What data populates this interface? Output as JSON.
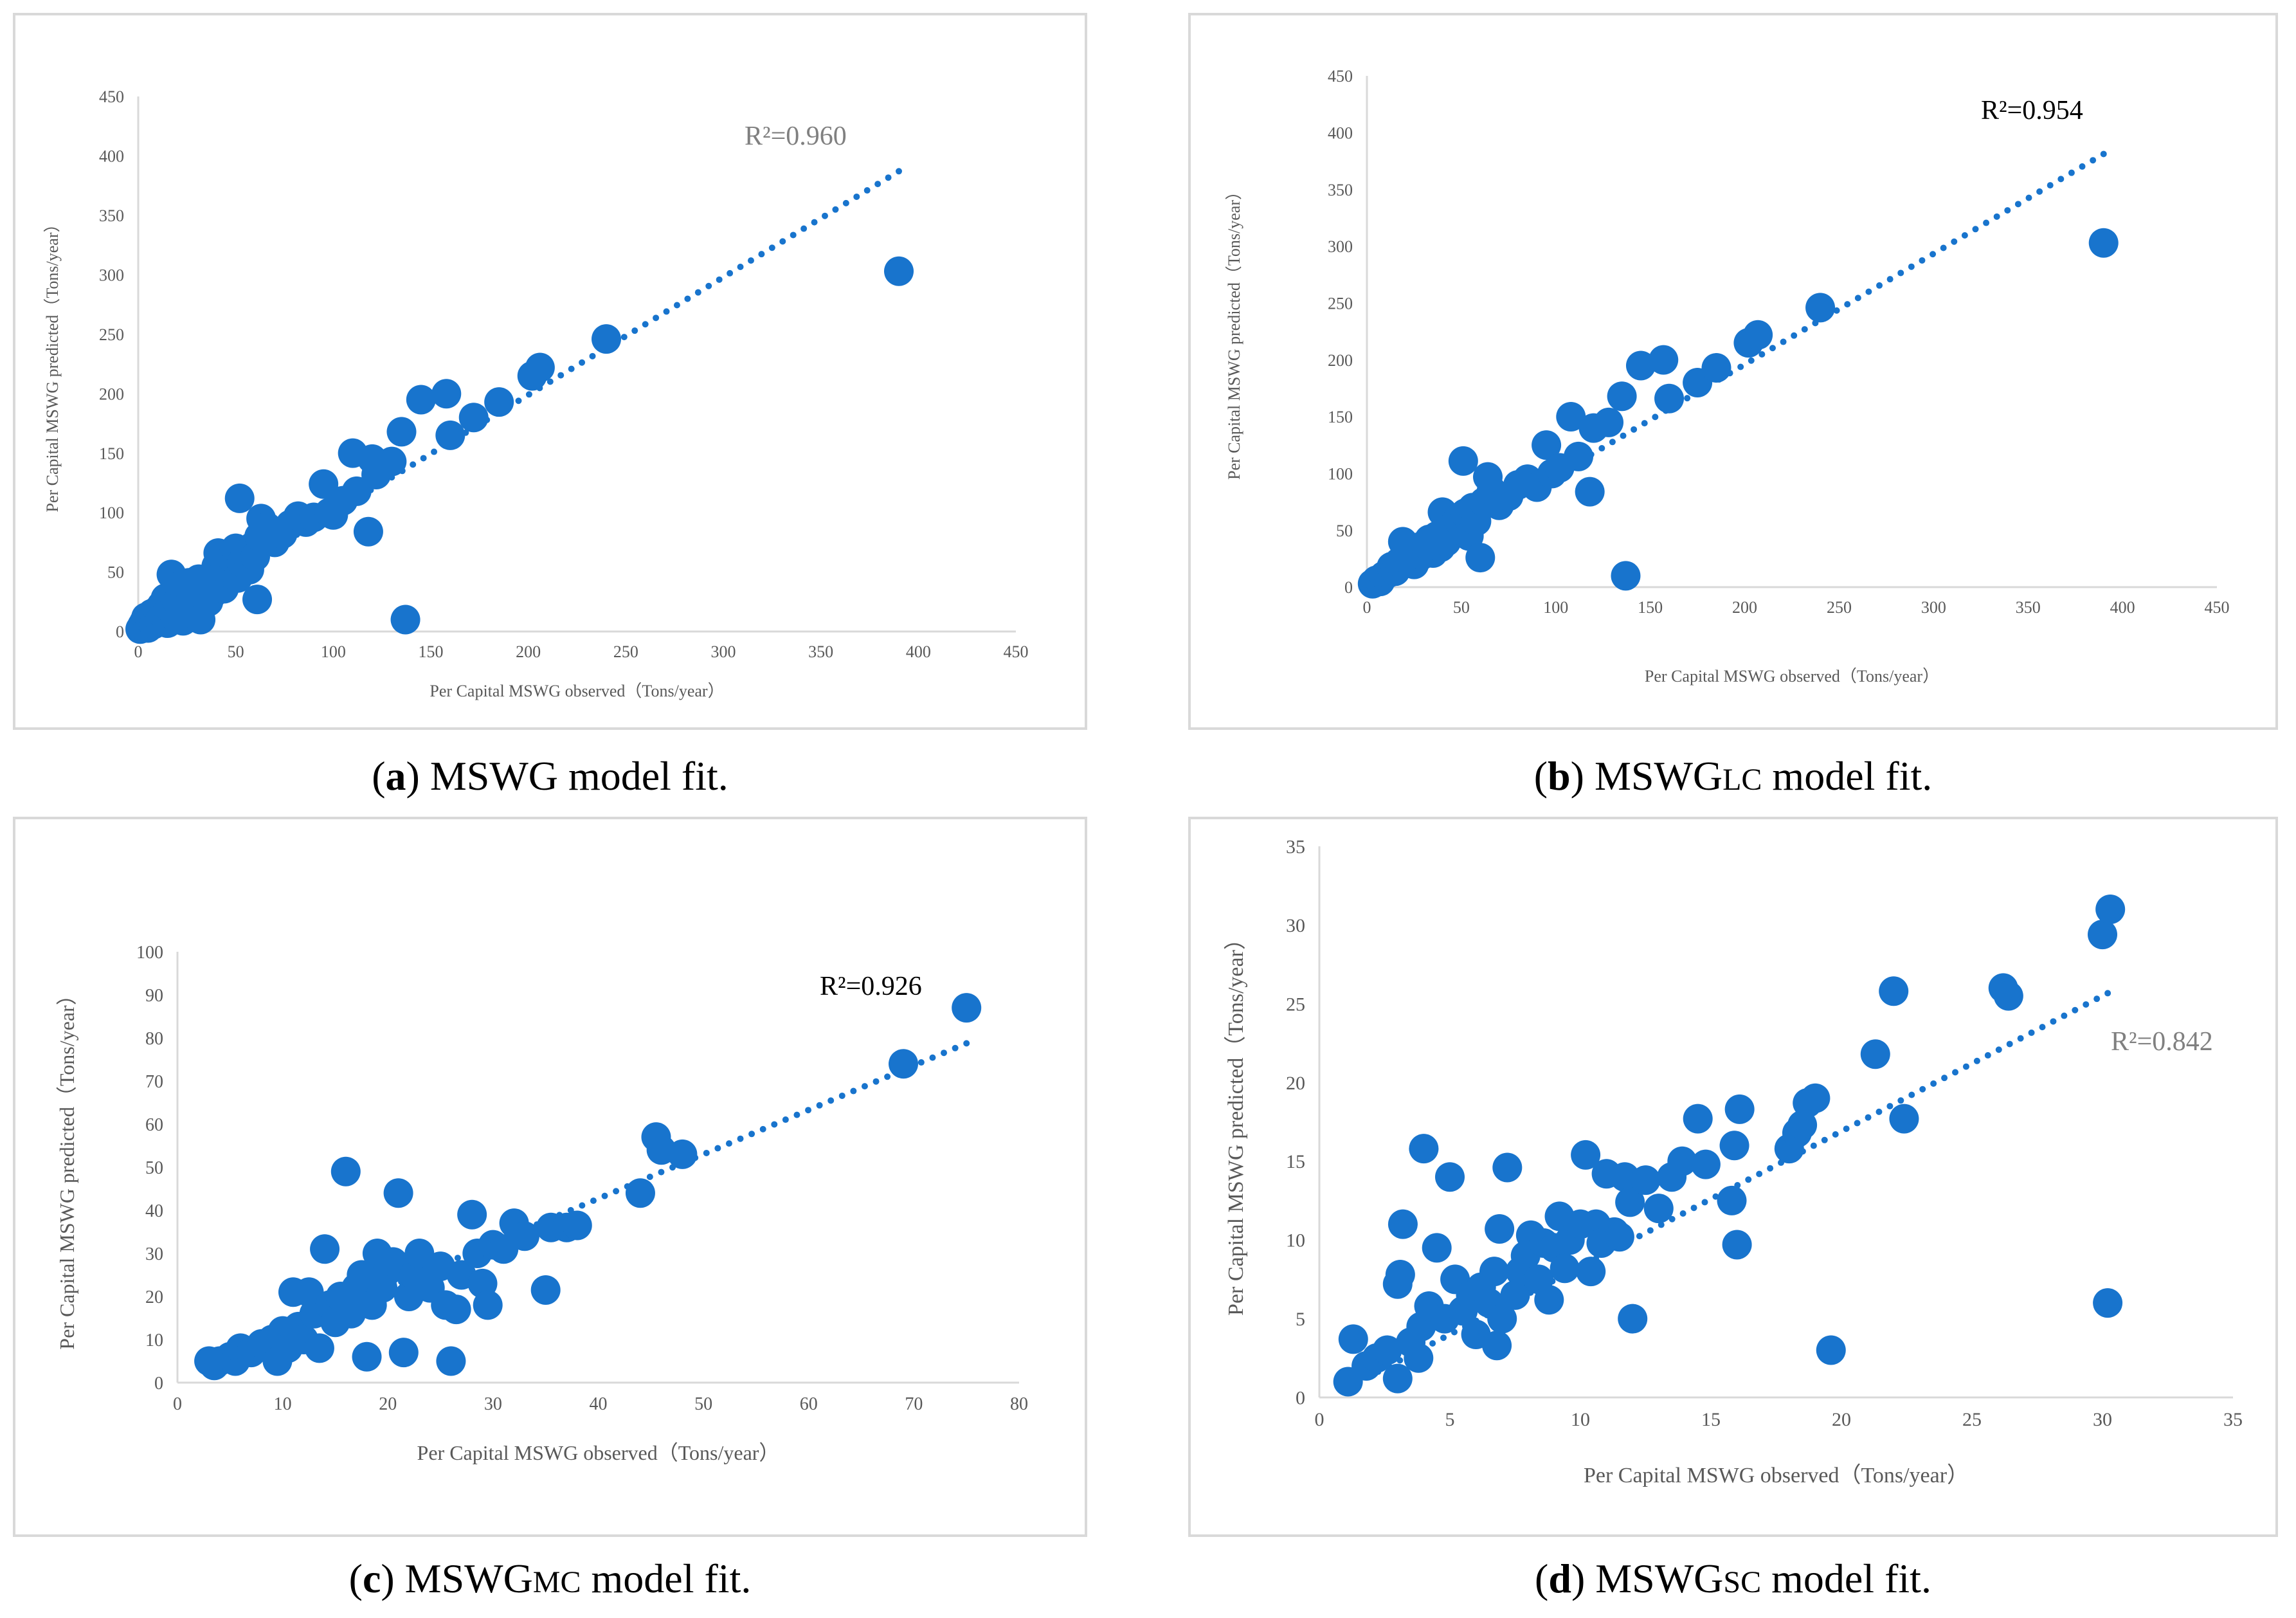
{
  "chart_data": [
    {
      "id": "a",
      "type": "scatter",
      "title": "",
      "xlabel": "Per Capital MSWG observed（Tons/year）",
      "ylabel": "Per Capital MSWG predicted（Tons/year）",
      "xlim": [
        0,
        450
      ],
      "ylim": [
        0,
        450
      ],
      "xticks": [
        0,
        50,
        100,
        150,
        200,
        250,
        300,
        350,
        400,
        450
      ],
      "yticks": [
        0,
        50,
        100,
        150,
        200,
        250,
        300,
        350,
        400,
        450
      ],
      "r2_label": "R²=0.960",
      "r2_color": "#808080",
      "trendline": {
        "x_from": 0,
        "x_to": 390,
        "slope": 0.99,
        "intercept": 1
      },
      "points": [
        [
          1,
          2
        ],
        [
          2,
          5
        ],
        [
          3,
          8
        ],
        [
          4,
          12
        ],
        [
          5,
          3
        ],
        [
          6,
          10
        ],
        [
          7,
          15
        ],
        [
          8,
          6
        ],
        [
          10,
          18
        ],
        [
          11,
          9
        ],
        [
          12,
          22
        ],
        [
          13,
          14
        ],
        [
          14,
          28
        ],
        [
          15,
          7
        ],
        [
          16,
          20
        ],
        [
          17,
          48
        ],
        [
          18,
          31
        ],
        [
          19,
          12
        ],
        [
          20,
          25
        ],
        [
          21,
          38
        ],
        [
          22,
          17
        ],
        [
          23,
          9
        ],
        [
          24,
          33
        ],
        [
          25,
          20
        ],
        [
          26,
          41
        ],
        [
          27,
          28
        ],
        [
          28,
          15
        ],
        [
          29,
          36
        ],
        [
          30,
          22
        ],
        [
          31,
          44
        ],
        [
          32,
          10
        ],
        [
          34,
          30
        ],
        [
          35,
          38
        ],
        [
          36,
          25
        ],
        [
          38,
          45
        ],
        [
          39,
          33
        ],
        [
          40,
          55
        ],
        [
          41,
          66
        ],
        [
          42,
          42
        ],
        [
          44,
          36
        ],
        [
          45,
          58
        ],
        [
          46,
          50
        ],
        [
          48,
          62
        ],
        [
          50,
          70
        ],
        [
          51,
          45
        ],
        [
          52,
          112
        ],
        [
          53,
          58
        ],
        [
          55,
          65
        ],
        [
          57,
          52
        ],
        [
          59,
          72
        ],
        [
          60,
          63
        ],
        [
          61,
          27
        ],
        [
          62,
          80
        ],
        [
          63,
          95
        ],
        [
          66,
          88
        ],
        [
          70,
          75
        ],
        [
          74,
          82
        ],
        [
          78,
          90
        ],
        [
          82,
          97
        ],
        [
          86,
          92
        ],
        [
          90,
          96
        ],
        [
          95,
          124
        ],
        [
          98,
          100
        ],
        [
          100,
          98
        ],
        [
          105,
          110
        ],
        [
          110,
          150
        ],
        [
          112,
          118
        ],
        [
          118,
          84
        ],
        [
          120,
          145
        ],
        [
          122,
          132
        ],
        [
          130,
          143
        ],
        [
          135,
          168
        ],
        [
          137,
          10
        ],
        [
          145,
          195
        ],
        [
          158,
          200
        ],
        [
          160,
          165
        ],
        [
          172,
          180
        ],
        [
          185,
          193
        ],
        [
          202,
          215
        ],
        [
          206,
          222
        ],
        [
          240,
          246
        ],
        [
          390,
          303
        ]
      ]
    },
    {
      "id": "b",
      "type": "scatter",
      "title": "",
      "xlabel": "Per Capital MSWG observed（Tons/year）",
      "ylabel": "Per Capital MSWG predicted（Tons/year）",
      "xlim": [
        0,
        450
      ],
      "ylim": [
        0,
        450
      ],
      "xticks": [
        0,
        50,
        100,
        150,
        200,
        250,
        300,
        350,
        400,
        450
      ],
      "yticks": [
        0,
        50,
        100,
        150,
        200,
        250,
        300,
        350,
        400,
        450
      ],
      "r2_label": "R²=0.954",
      "r2_color": "#000000",
      "trendline": {
        "x_from": 0,
        "x_to": 390,
        "slope": 0.975,
        "intercept": 1
      },
      "points": [
        [
          3,
          3
        ],
        [
          5,
          6
        ],
        [
          7,
          5
        ],
        [
          9,
          10
        ],
        [
          11,
          12
        ],
        [
          13,
          18
        ],
        [
          15,
          14
        ],
        [
          17,
          22
        ],
        [
          19,
          40
        ],
        [
          21,
          25
        ],
        [
          23,
          30
        ],
        [
          25,
          20
        ],
        [
          27,
          35
        ],
        [
          29,
          28
        ],
        [
          31,
          38
        ],
        [
          33,
          42
        ],
        [
          35,
          30
        ],
        [
          37,
          45
        ],
        [
          39,
          35
        ],
        [
          40,
          66
        ],
        [
          42,
          40
        ],
        [
          44,
          52
        ],
        [
          46,
          48
        ],
        [
          48,
          60
        ],
        [
          50,
          55
        ],
        [
          51,
          111
        ],
        [
          52,
          65
        ],
        [
          54,
          45
        ],
        [
          56,
          70
        ],
        [
          58,
          58
        ],
        [
          60,
          26
        ],
        [
          62,
          75
        ],
        [
          64,
          97
        ],
        [
          66,
          85
        ],
        [
          70,
          72
        ],
        [
          75,
          80
        ],
        [
          80,
          90
        ],
        [
          85,
          95
        ],
        [
          90,
          88
        ],
        [
          95,
          125
        ],
        [
          98,
          100
        ],
        [
          102,
          105
        ],
        [
          108,
          150
        ],
        [
          112,
          115
        ],
        [
          118,
          84
        ],
        [
          120,
          140
        ],
        [
          128,
          145
        ],
        [
          135,
          168
        ],
        [
          137,
          10
        ],
        [
          145,
          195
        ],
        [
          157,
          200
        ],
        [
          160,
          166
        ],
        [
          175,
          180
        ],
        [
          185,
          193
        ],
        [
          202,
          215
        ],
        [
          207,
          222
        ],
        [
          240,
          246
        ],
        [
          390,
          303
        ]
      ]
    },
    {
      "id": "c",
      "type": "scatter",
      "title": "",
      "xlabel": "Per Capital MSWG observed（Tons/year）",
      "ylabel": "Per Capital MSWG predicted（Tons/year）",
      "xlim": [
        0,
        80
      ],
      "ylim": [
        0,
        100
      ],
      "xticks": [
        0,
        10,
        20,
        30,
        40,
        50,
        60,
        70,
        80
      ],
      "yticks": [
        0,
        10,
        20,
        30,
        40,
        50,
        60,
        70,
        80,
        90,
        100
      ],
      "r2_label": "R²=0.926",
      "r2_color": "#000000",
      "trendline": {
        "x_from": 3,
        "x_to": 75,
        "slope": 1.03,
        "intercept": 1.5
      },
      "points": [
        [
          3,
          5
        ],
        [
          3.5,
          4
        ],
        [
          4,
          5
        ],
        [
          5,
          6
        ],
        [
          5.5,
          5
        ],
        [
          6,
          8
        ],
        [
          7,
          7
        ],
        [
          8,
          9
        ],
        [
          9,
          10
        ],
        [
          9.5,
          5
        ],
        [
          10,
          12
        ],
        [
          10.5,
          8
        ],
        [
          11,
          21
        ],
        [
          11.5,
          13
        ],
        [
          12,
          10
        ],
        [
          12.5,
          21
        ],
        [
          13,
          16
        ],
        [
          13.5,
          8
        ],
        [
          14,
          31
        ],
        [
          14.5,
          18
        ],
        [
          15,
          14
        ],
        [
          15.5,
          20
        ],
        [
          16,
          49
        ],
        [
          16.5,
          16
        ],
        [
          17,
          22
        ],
        [
          17.5,
          25
        ],
        [
          18,
          6
        ],
        [
          18.5,
          18
        ],
        [
          19,
          30
        ],
        [
          19.5,
          22
        ],
        [
          20,
          26
        ],
        [
          20.5,
          28
        ],
        [
          21,
          44
        ],
        [
          21.5,
          7
        ],
        [
          22,
          20
        ],
        [
          22.5,
          25
        ],
        [
          23,
          30
        ],
        [
          24,
          22
        ],
        [
          25,
          27
        ],
        [
          25.5,
          18
        ],
        [
          26,
          5
        ],
        [
          26.5,
          17
        ],
        [
          27,
          25
        ],
        [
          28,
          39
        ],
        [
          28.5,
          30
        ],
        [
          29,
          23
        ],
        [
          29.5,
          18
        ],
        [
          30,
          32
        ],
        [
          31,
          31
        ],
        [
          32,
          37
        ],
        [
          33,
          34
        ],
        [
          35,
          21.5
        ],
        [
          35.5,
          36
        ],
        [
          37,
          36
        ],
        [
          38,
          36.5
        ],
        [
          44,
          44
        ],
        [
          45.5,
          57
        ],
        [
          46,
          54
        ],
        [
          48,
          53
        ],
        [
          69,
          74
        ],
        [
          75,
          87
        ]
      ]
    },
    {
      "id": "d",
      "type": "scatter",
      "title": "",
      "xlabel": "Per Capital MSWG observed（Tons/year）",
      "ylabel": "Per Capital MSWG predicted（Tons/year）",
      "xlim": [
        0,
        35
      ],
      "ylim": [
        0,
        35
      ],
      "xticks": [
        0,
        5,
        10,
        15,
        20,
        25,
        30,
        35
      ],
      "yticks": [
        0,
        5,
        10,
        15,
        20,
        25,
        30,
        35
      ],
      "r2_label": "R²=0.842",
      "r2_color": "#808080",
      "trendline": {
        "x_from": 1,
        "x_to": 30.2,
        "slope": 0.86,
        "intercept": -0.3
      },
      "points": [
        [
          1.1,
          1
        ],
        [
          1.3,
          3.7
        ],
        [
          1.8,
          2
        ],
        [
          2.2,
          2.5
        ],
        [
          2.6,
          3
        ],
        [
          3,
          1.2
        ],
        [
          3,
          7.2
        ],
        [
          3.1,
          7.8
        ],
        [
          3.2,
          11
        ],
        [
          3.5,
          3.5
        ],
        [
          3.8,
          2.5
        ],
        [
          3.9,
          4.5
        ],
        [
          4,
          15.8
        ],
        [
          4.2,
          5.8
        ],
        [
          4.5,
          9.5
        ],
        [
          4.8,
          5
        ],
        [
          5,
          14
        ],
        [
          5.2,
          7.5
        ],
        [
          5.5,
          5.5
        ],
        [
          5.8,
          6.5
        ],
        [
          6,
          4
        ],
        [
          6.2,
          7
        ],
        [
          6.5,
          6
        ],
        [
          6.7,
          8
        ],
        [
          6.8,
          3.3
        ],
        [
          6.9,
          10.7
        ],
        [
          7,
          5
        ],
        [
          7.2,
          14.6
        ],
        [
          7.5,
          6.5
        ],
        [
          7.7,
          8
        ],
        [
          7.9,
          9
        ],
        [
          8.1,
          10.3
        ],
        [
          8.4,
          7.5
        ],
        [
          8.6,
          9.8
        ],
        [
          8.8,
          6.2
        ],
        [
          9,
          9.5
        ],
        [
          9.2,
          11.5
        ],
        [
          9.4,
          8.2
        ],
        [
          9.6,
          10
        ],
        [
          10,
          11
        ],
        [
          10.2,
          15.4
        ],
        [
          10.4,
          8
        ],
        [
          10.6,
          11
        ],
        [
          10.8,
          9.8
        ],
        [
          11,
          14.2
        ],
        [
          11.3,
          10.5
        ],
        [
          11.5,
          10.2
        ],
        [
          11.7,
          14
        ],
        [
          11.9,
          12.4
        ],
        [
          12,
          5
        ],
        [
          12.5,
          13.8
        ],
        [
          13,
          12
        ],
        [
          13.5,
          14
        ],
        [
          13.9,
          15
        ],
        [
          14.5,
          17.7
        ],
        [
          14.8,
          14.8
        ],
        [
          15.8,
          12.5
        ],
        [
          15.9,
          16
        ],
        [
          16,
          9.7
        ],
        [
          16.1,
          18.3
        ],
        [
          18,
          15.8
        ],
        [
          18.3,
          16.8
        ],
        [
          18.5,
          17.3
        ],
        [
          18.7,
          18.7
        ],
        [
          19,
          19
        ],
        [
          19.6,
          3
        ],
        [
          21.3,
          21.8
        ],
        [
          22,
          25.8
        ],
        [
          22.4,
          17.7
        ],
        [
          26.2,
          26
        ],
        [
          26.4,
          25.5
        ],
        [
          30,
          29.4
        ],
        [
          30.2,
          6
        ],
        [
          30.3,
          31
        ]
      ]
    }
  ],
  "captions": [
    {
      "letter": "a",
      "pre": "MSWG",
      "sub": "",
      "post": " model fit."
    },
    {
      "letter": "b",
      "pre": "MSWG",
      "sub": "LC",
      "post": " model fit."
    },
    {
      "letter": "c",
      "pre": "MSWG",
      "sub": "MC",
      "post": " model fit."
    },
    {
      "letter": "d",
      "pre": "MSWG",
      "sub": "SC",
      "post": " model fit."
    }
  ],
  "colors": {
    "marker": "#1874cd",
    "axis": "#d9d9d9",
    "text": "#595959",
    "frame": "#d9d9d9"
  }
}
